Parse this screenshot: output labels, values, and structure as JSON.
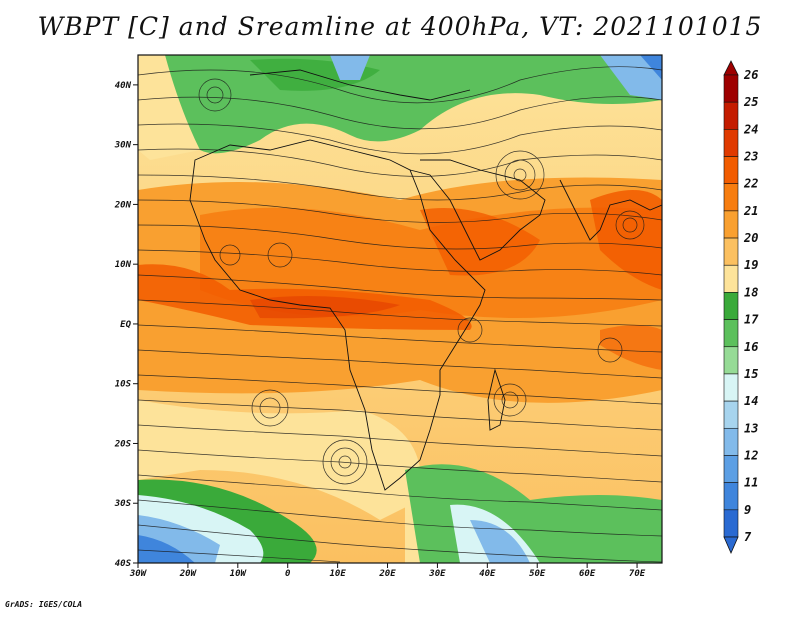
{
  "title": "WBPT [C] and Sreamline at 400hPa, VT: 2021101015",
  "credit": "GrADS: IGES/COLA",
  "map": {
    "lat_ticks": [
      "40N",
      "30N",
      "20N",
      "10N",
      "EQ",
      "10S",
      "20S",
      "30S",
      "40S"
    ],
    "lon_ticks": [
      "30W",
      "20W",
      "10W",
      "0",
      "10E",
      "20E",
      "30E",
      "40E",
      "50E",
      "60E",
      "70E"
    ],
    "lat_range": [
      -40,
      45
    ],
    "lon_range": [
      -30,
      75
    ]
  },
  "colorbar": {
    "labels": [
      "26",
      "25",
      "24",
      "23",
      "22",
      "21",
      "20",
      "19",
      "18",
      "17",
      "16",
      "15",
      "14",
      "13",
      "12",
      "11",
      "9",
      "7"
    ],
    "colors": [
      "#9e0000",
      "#c41c00",
      "#e03a00",
      "#f25c00",
      "#f77d10",
      "#f9a030",
      "#fbc060",
      "#fde39a",
      "#3aaa3a",
      "#5cc05c",
      "#96db96",
      "#d8f5f5",
      "#a7d4ee",
      "#82baea",
      "#5c9fe4",
      "#3f85dc",
      "#2a6ad2"
    ]
  },
  "regions": [
    {
      "name": "north-green-band",
      "color": "#5cc05c"
    },
    {
      "name": "equatorial-warm-belt",
      "color": "#f25c00"
    },
    {
      "name": "southern-cool-zone",
      "color": "#82baea"
    }
  ]
}
